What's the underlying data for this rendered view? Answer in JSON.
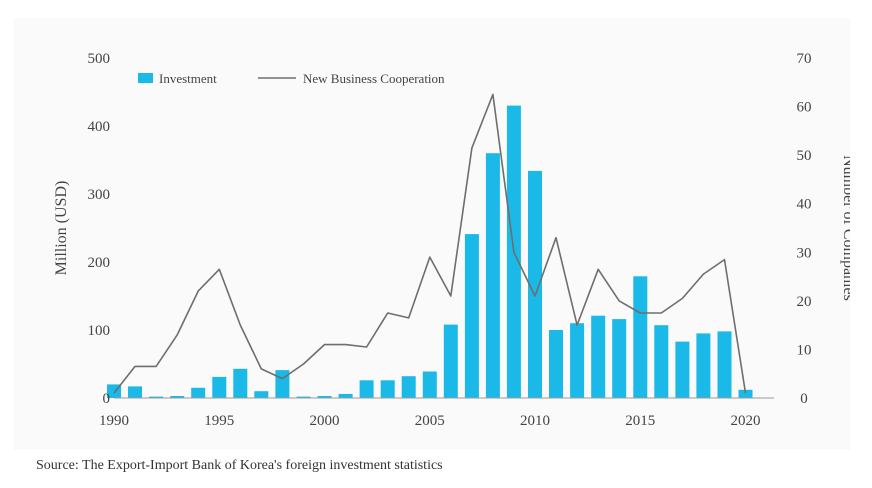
{
  "colors": {
    "bar": "#1ab9e8",
    "line": "#6e6e6e",
    "text": "#444444"
  },
  "source": "Source: The Export-Import Bank of Korea's foreign investment statistics",
  "chart_data": {
    "type": "bar",
    "title": "",
    "ylabel": "Million (USD)",
    "y2label": "Number of Companies",
    "ylim": [
      0,
      500
    ],
    "y2lim": [
      0,
      70
    ],
    "yticks": [
      "0",
      "100",
      "200",
      "300",
      "400",
      "500"
    ],
    "y2ticks": [
      "0",
      "10",
      "20",
      "30",
      "40",
      "50",
      "60",
      "70"
    ],
    "xticks": [
      "1990",
      "1995",
      "2000",
      "2005",
      "2010",
      "2015",
      "2020"
    ],
    "grid": false,
    "legend_position": "top-left",
    "x": [
      1990,
      1991,
      1992,
      1993,
      1994,
      1995,
      1996,
      1997,
      1998,
      1999,
      2000,
      2001,
      2002,
      2003,
      2004,
      2005,
      2006,
      2007,
      2008,
      2009,
      2010,
      2011,
      2012,
      2013,
      2014,
      2015,
      2016,
      2017,
      2018,
      2019,
      2020
    ],
    "series": [
      {
        "name": "Investment",
        "kind": "bar",
        "axis": "left",
        "values": [
          20,
          17,
          2,
          3,
          15,
          31,
          43,
          10,
          41,
          2,
          3,
          6,
          26,
          26,
          32,
          39,
          108,
          241,
          360,
          430,
          334,
          100,
          110,
          121,
          116,
          179,
          107,
          83,
          95,
          98,
          12
        ]
      },
      {
        "name": "New Business Cooperation",
        "kind": "line",
        "axis": "right",
        "values": [
          1,
          6.5,
          6.5,
          13,
          22,
          26.5,
          15,
          6,
          4,
          7,
          11,
          11,
          10.5,
          17.5,
          16.5,
          29,
          21,
          51.5,
          62.5,
          30,
          21,
          33,
          15,
          26.5,
          20,
          17.5,
          17.5,
          20.5,
          25.5,
          28.5,
          1
        ]
      }
    ]
  }
}
